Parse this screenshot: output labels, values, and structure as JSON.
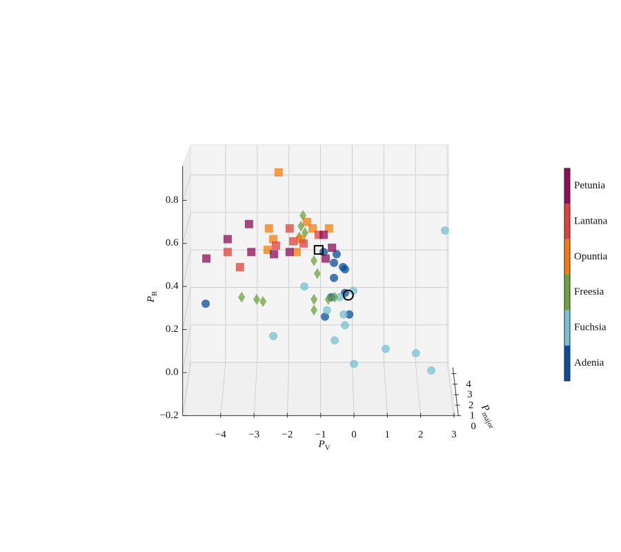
{
  "chart_data": {
    "type": "scatter3d",
    "xlabel": {
      "symbol": "P",
      "sub": "V"
    },
    "ylabel": {
      "symbol": "P",
      "sub": "R"
    },
    "zlabel": {
      "symbol": "P",
      "sub": "major"
    },
    "xlim": [
      -5.1,
      3.05
    ],
    "ylim": [
      -0.2,
      0.96
    ],
    "zlim": [
      0,
      4.6
    ],
    "xticks": [
      {
        "value": -4,
        "label": "−4"
      },
      {
        "value": -3,
        "label": "−3"
      },
      {
        "value": -2,
        "label": "−2"
      },
      {
        "value": -1,
        "label": "−1"
      },
      0,
      1,
      2,
      3
    ],
    "yticks": [
      {
        "value": -0.2,
        "label": "−0.2"
      },
      {
        "value": 0,
        "label": "0.0"
      },
      0.2,
      0.4,
      0.6,
      0.8
    ],
    "zticks": [
      0,
      1,
      2,
      3,
      4
    ],
    "grid": true,
    "series": [
      {
        "name": "Adenia",
        "color": "#0a4f9b",
        "marker": "circle",
        "x": [
          -0.91,
          -0.52,
          -0.6,
          -0.33,
          -0.27,
          -0.6,
          -0.68,
          -0.27,
          -0.14,
          -0.87,
          -4.45
        ],
        "y": [
          0.56,
          0.55,
          0.51,
          0.49,
          0.48,
          0.44,
          0.35,
          0.37,
          0.27,
          0.26,
          0.32
        ]
      },
      {
        "name": "Fuchsia",
        "color": "#79c1d2",
        "marker": "circle",
        "x": [
          2.73,
          -1.49,
          -0.02,
          -0.31,
          -0.81,
          -0.27,
          -2.42,
          -0.58,
          0,
          0.95,
          1.86,
          2.32,
          -0.43
        ],
        "y": [
          0.66,
          0.4,
          0.38,
          0.27,
          0.29,
          0.22,
          0.17,
          0.15,
          0.04,
          0.11,
          0.09,
          0.01,
          0.35
        ]
      },
      {
        "name": "Freesia",
        "color": "#6ea13f",
        "marker": "diamond",
        "x": [
          -1.53,
          -1.59,
          -1.47,
          -1.64,
          -1.2,
          -1.1,
          -3.37,
          -2.92,
          -2.73,
          -1.2,
          -1.2,
          -0.77,
          -0.58
        ],
        "y": [
          0.73,
          0.68,
          0.65,
          0.63,
          0.52,
          0.46,
          0.35,
          0.34,
          0.33,
          0.34,
          0.29,
          0.34,
          0.35
        ]
      },
      {
        "name": "Opuntia",
        "color": "#f27f0c",
        "marker": "square",
        "x": [
          -2.26,
          -1.41,
          -0.75,
          -2.55,
          -2.42,
          -2.59,
          -1.59,
          -1.72,
          -1.24
        ],
        "y": [
          0.93,
          0.7,
          0.67,
          0.67,
          0.62,
          0.57,
          0.62,
          0.56,
          0.67
        ]
      },
      {
        "name": "Lantana",
        "color": "#e0413c",
        "marker": "square",
        "x": [
          -1.93,
          -3.79,
          -3.42,
          -1.82,
          -1.51,
          -2.34,
          -1.06
        ],
        "y": [
          0.67,
          0.56,
          0.49,
          0.61,
          0.6,
          0.59,
          0.64
        ]
      },
      {
        "name": "Petunia",
        "color": "#8e0e5a",
        "marker": "square",
        "x": [
          -3.15,
          -3.79,
          -4.43,
          -3.08,
          -2.4,
          -0.66,
          -0.91,
          -0.85,
          -1.93
        ],
        "y": [
          0.69,
          0.62,
          0.53,
          0.56,
          0.55,
          0.58,
          0.64,
          0.53,
          0.56
        ]
      }
    ],
    "highlights": [
      {
        "marker": "open-square",
        "color": "#000000",
        "x": [
          -1.06
        ],
        "y": [
          0.57
        ]
      },
      {
        "marker": "open-circle",
        "color": "#000000",
        "x": [
          -0.17
        ],
        "y": [
          0.36
        ]
      }
    ]
  }
}
